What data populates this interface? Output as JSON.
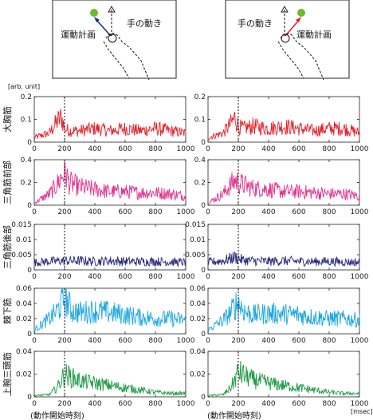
{
  "colors": {
    "pectoralis": "#e8202a",
    "ant_deltoid": "#e0348f",
    "post_deltoid": "#2a2a7a",
    "infraspinatus": "#1ea6e2",
    "triceps": "#1f9a45",
    "green_dot": "#6dbb2d",
    "plan_arrow": "#1b2f8a",
    "hand_arrow_left": "#e8202a"
  },
  "diagram": {
    "left": {
      "plan_label": "運動計画",
      "hand_label": "手の動き"
    },
    "right": {
      "hand_label": "手の動き",
      "plan_label": "運動計画"
    }
  },
  "unit_label": "[arb. unit]",
  "msec_label": "[msec]",
  "footer_left": "(動作開始時刻)",
  "footer_right": "(動作開始時刻)",
  "chart_data": [
    {
      "type": "line",
      "muscle": "大胸筋",
      "xlim": [
        0,
        1000
      ],
      "ylim": [
        0,
        0.2
      ],
      "yticks": [
        "0",
        "0.1",
        "0.2"
      ],
      "xticks": [
        "0",
        "200",
        "400",
        "600",
        "800",
        "1000"
      ],
      "marker_x": 200,
      "color": "#e8202a",
      "series": [
        {
          "panel": "left",
          "x": [
            0,
            100,
            150,
            180,
            200,
            230,
            300,
            400,
            500,
            600,
            700,
            800,
            900,
            1000
          ],
          "values": [
            0.02,
            0.04,
            0.09,
            0.11,
            0.06,
            0.05,
            0.05,
            0.06,
            0.05,
            0.06,
            0.05,
            0.06,
            0.05,
            0.04
          ]
        },
        {
          "panel": "right",
          "x": [
            0,
            100,
            150,
            180,
            200,
            230,
            300,
            400,
            500,
            600,
            700,
            800,
            900,
            1000
          ],
          "values": [
            0.02,
            0.04,
            0.08,
            0.11,
            0.07,
            0.06,
            0.07,
            0.06,
            0.07,
            0.06,
            0.05,
            0.06,
            0.06,
            0.04
          ]
        }
      ]
    },
    {
      "type": "line",
      "muscle": "三角筋前部",
      "xlim": [
        0,
        1000
      ],
      "ylim": [
        0,
        0.4
      ],
      "yticks": [
        "0",
        "0.2",
        "0.4"
      ],
      "xticks": [
        "0",
        "200",
        "400",
        "600",
        "800",
        "1000"
      ],
      "marker_x": 200,
      "color": "#e0348f",
      "series": [
        {
          "panel": "left",
          "x": [
            0,
            100,
            150,
            180,
            200,
            230,
            300,
            400,
            500,
            600,
            700,
            800,
            900,
            1000
          ],
          "values": [
            0.02,
            0.1,
            0.18,
            0.25,
            0.3,
            0.2,
            0.16,
            0.14,
            0.12,
            0.12,
            0.11,
            0.11,
            0.1,
            0.08
          ]
        },
        {
          "panel": "right",
          "x": [
            0,
            100,
            150,
            180,
            200,
            230,
            300,
            400,
            500,
            600,
            700,
            800,
            900,
            1000
          ],
          "values": [
            0.02,
            0.1,
            0.18,
            0.22,
            0.2,
            0.18,
            0.15,
            0.14,
            0.12,
            0.12,
            0.11,
            0.1,
            0.1,
            0.08
          ]
        }
      ]
    },
    {
      "type": "line",
      "muscle": "三角筋後部",
      "xlim": [
        0,
        1000
      ],
      "ylim": [
        0,
        0.015
      ],
      "yticks": [
        "0",
        "0.005",
        "0.01",
        "0.015"
      ],
      "xticks": [
        "0",
        "200",
        "400",
        "600",
        "800",
        "1000"
      ],
      "marker_x": 200,
      "color": "#2a2a7a",
      "series": [
        {
          "panel": "left",
          "x": [
            0,
            100,
            200,
            300,
            400,
            500,
            600,
            700,
            800,
            900,
            1000
          ],
          "values": [
            0.0025,
            0.0028,
            0.003,
            0.003,
            0.0028,
            0.003,
            0.0028,
            0.0027,
            0.0028,
            0.0026,
            0.0025
          ]
        },
        {
          "panel": "right",
          "x": [
            0,
            100,
            180,
            200,
            230,
            300,
            400,
            500,
            600,
            700,
            800,
            900,
            1000
          ],
          "values": [
            0.0025,
            0.003,
            0.0042,
            0.0038,
            0.0032,
            0.003,
            0.0028,
            0.003,
            0.0028,
            0.0027,
            0.0028,
            0.0026,
            0.0025
          ]
        }
      ]
    },
    {
      "type": "line",
      "muscle": "棘下筋",
      "xlim": [
        0,
        1000
      ],
      "ylim": [
        0,
        0.06
      ],
      "yticks": [
        "0",
        "0.02",
        "0.04",
        "0.06"
      ],
      "xticks": [
        "0",
        "200",
        "400",
        "600",
        "800",
        "1000"
      ],
      "marker_x": 200,
      "color": "#1ea6e2",
      "series": [
        {
          "panel": "left",
          "x": [
            0,
            100,
            150,
            180,
            200,
            250,
            300,
            400,
            500,
            600,
            700,
            800,
            900,
            1000
          ],
          "values": [
            0.005,
            0.02,
            0.03,
            0.04,
            0.048,
            0.03,
            0.028,
            0.03,
            0.028,
            0.025,
            0.022,
            0.02,
            0.02,
            0.018
          ]
        },
        {
          "panel": "right",
          "x": [
            0,
            100,
            150,
            180,
            200,
            250,
            300,
            400,
            500,
            600,
            700,
            800,
            900,
            1000
          ],
          "values": [
            0.005,
            0.018,
            0.028,
            0.038,
            0.04,
            0.028,
            0.025,
            0.027,
            0.026,
            0.025,
            0.022,
            0.02,
            0.02,
            0.018
          ]
        }
      ]
    },
    {
      "type": "line",
      "muscle": "上腕三頭筋",
      "xlim": [
        0,
        1000
      ],
      "ylim": [
        0,
        0.04
      ],
      "yticks": [
        "0",
        "0.02",
        "0.04"
      ],
      "xticks": [
        "0",
        "200",
        "400",
        "600",
        "800",
        "1000"
      ],
      "marker_x": 200,
      "color": "#1f9a45",
      "series": [
        {
          "panel": "left",
          "x": [
            0,
            100,
            150,
            180,
            200,
            250,
            300,
            400,
            500,
            600,
            700,
            800,
            900,
            1000
          ],
          "values": [
            0.001,
            0.002,
            0.008,
            0.015,
            0.02,
            0.017,
            0.014,
            0.012,
            0.01,
            0.008,
            0.006,
            0.004,
            0.003,
            0.003
          ]
        },
        {
          "panel": "right",
          "x": [
            0,
            100,
            150,
            180,
            200,
            250,
            300,
            400,
            500,
            600,
            700,
            800,
            900,
            1000
          ],
          "values": [
            0.001,
            0.002,
            0.008,
            0.016,
            0.022,
            0.018,
            0.015,
            0.012,
            0.01,
            0.008,
            0.006,
            0.004,
            0.003,
            0.003
          ]
        }
      ]
    }
  ]
}
